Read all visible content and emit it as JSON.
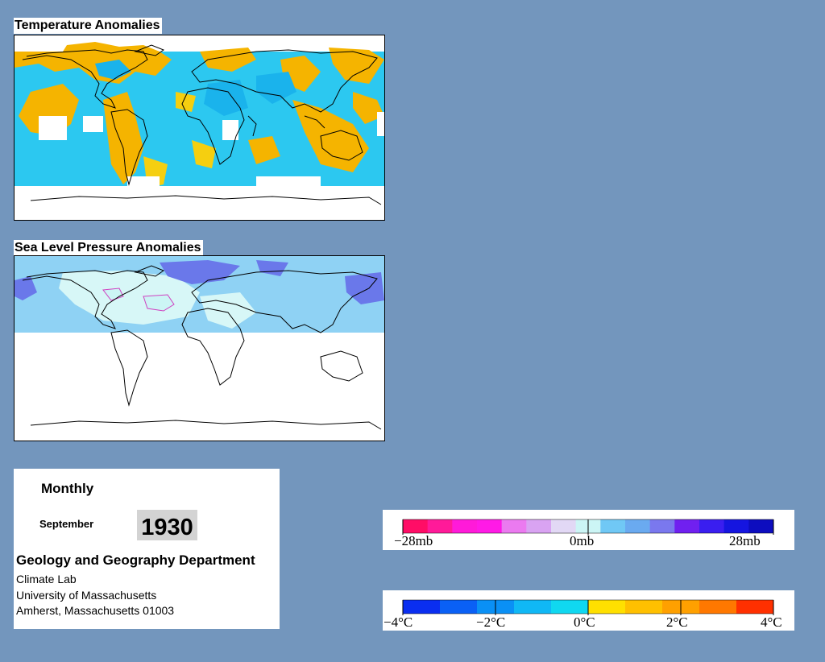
{
  "temperature_map": {
    "title": "Temperature Anomalies"
  },
  "pressure_map": {
    "title": "Sea Level Pressure Anomalies"
  },
  "info": {
    "frequency": "Monthly",
    "month": "September",
    "year": "1930",
    "department": "Geology and Geography Department",
    "lab": "Climate Lab",
    "university": "University of Massachusetts",
    "address": "Amherst, Massachusetts 01003"
  },
  "pressure_legend": {
    "labels": [
      "−28mb",
      "0mb",
      "28mb"
    ],
    "colors": [
      "#ff0d66",
      "#ff1a99",
      "#ff1ad9",
      "#ff1ae6",
      "#eb7af0",
      "#d9a3f2",
      "#e2d8f5",
      "#ccf5f5",
      "#70c8f5",
      "#6aaaf0",
      "#7a78ee",
      "#7020f0",
      "#3a1ef0",
      "#1515e0",
      "#0d0dbf"
    ]
  },
  "temperature_legend": {
    "labels": [
      "−4°C",
      "−2°C",
      "0°C",
      "2°C",
      "4°C"
    ],
    "colors": [
      "#0a2ef0",
      "#0a60f5",
      "#0a90f5",
      "#10b8f5",
      "#10d8f0",
      "#ffe000",
      "#ffc000",
      "#ffa000",
      "#ff7800",
      "#ff3000"
    ]
  },
  "colors": {
    "background": "#7396bd",
    "warm": "#f5b400",
    "warm_light": "#f5cf10",
    "cold": "#1ab3ec",
    "cold_light": "#2cc8f0",
    "high_pressure": "#6a78ea",
    "low_pressure": "#d86ad0",
    "neutral_pressure": "#d7f7f7",
    "mild_pressure": "#8fd2f4"
  }
}
